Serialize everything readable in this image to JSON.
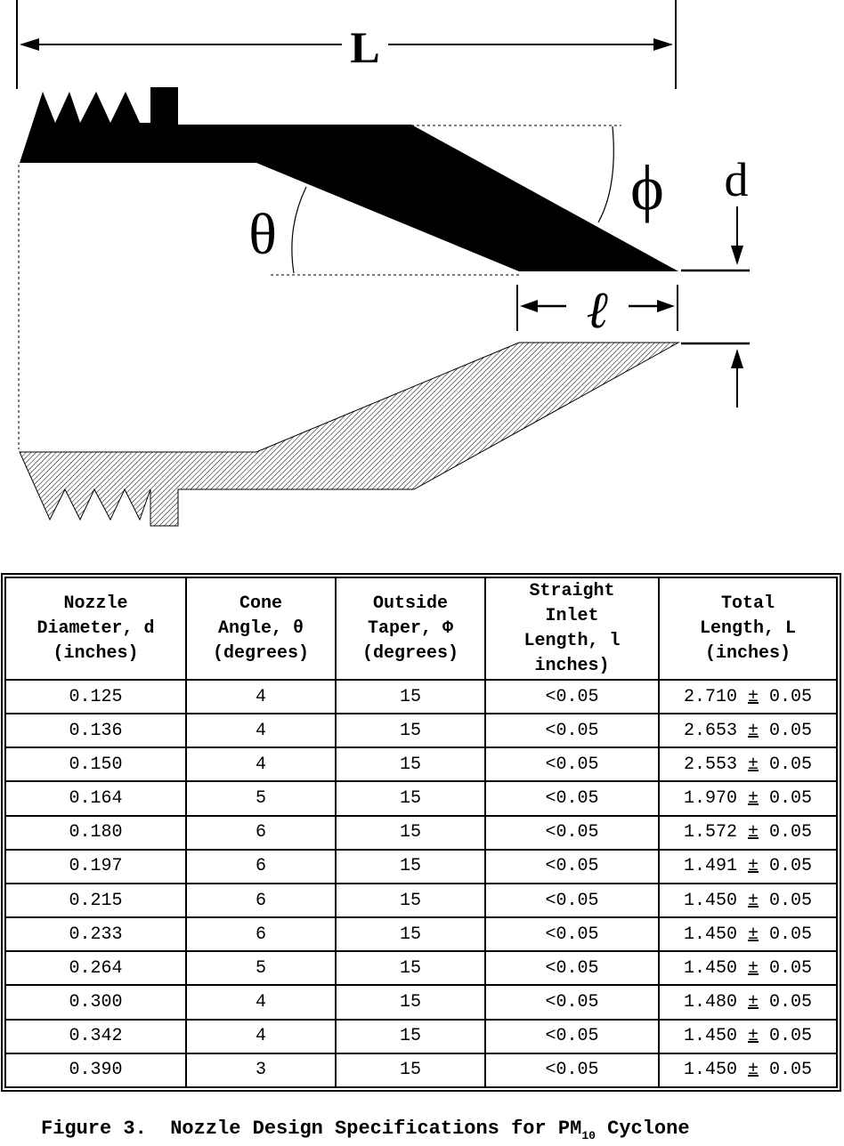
{
  "diagram": {
    "labels": {
      "total_length": "L",
      "cone_angle": "θ",
      "outside_taper": "ϕ",
      "diameter": "d",
      "straight_length": "ℓ"
    }
  },
  "table": {
    "headers": [
      "Nozzle\nDiameter, d\n(inches)",
      "Cone\nAngle, θ\n(degrees)",
      "Outside\nTaper, Φ\n(degrees)",
      "Straight\nInlet\nLength, l\ninches)",
      "Total\nLength, L\n(inches)"
    ],
    "rows": [
      [
        "0.125",
        "4",
        "15",
        "<0.05",
        "2.710",
        "±",
        "0.05"
      ],
      [
        "0.136",
        "4",
        "15",
        "<0.05",
        "2.653",
        "±",
        "0.05"
      ],
      [
        "0.150",
        "4",
        "15",
        "<0.05",
        "2.553",
        "±",
        "0.05"
      ],
      [
        "0.164",
        "5",
        "15",
        "<0.05",
        "1.970",
        "±",
        "0.05"
      ],
      [
        "0.180",
        "6",
        "15",
        "<0.05",
        "1.572",
        "±",
        "0.05"
      ],
      [
        "0.197",
        "6",
        "15",
        "<0.05",
        "1.491",
        "±",
        "0.05"
      ],
      [
        "0.215",
        "6",
        "15",
        "<0.05",
        "1.450",
        "±",
        "0.05"
      ],
      [
        "0.233",
        "6",
        "15",
        "<0.05",
        "1.450",
        "±",
        "0.05"
      ],
      [
        "0.264",
        "5",
        "15",
        "<0.05",
        "1.450",
        "±",
        "0.05"
      ],
      [
        "0.300",
        "4",
        "15",
        "<0.05",
        "1.480",
        "±",
        "0.05"
      ],
      [
        "0.342",
        "4",
        "15",
        "<0.05",
        "1.450",
        "±",
        "0.05"
      ],
      [
        "0.390",
        "3",
        "15",
        "<0.05",
        "1.450",
        "±",
        "0.05"
      ]
    ]
  },
  "caption": {
    "prefix": "Figure 3.  Nozzle Design Specifications for PM",
    "subscript": "10",
    "suffix": " Cyclone"
  }
}
